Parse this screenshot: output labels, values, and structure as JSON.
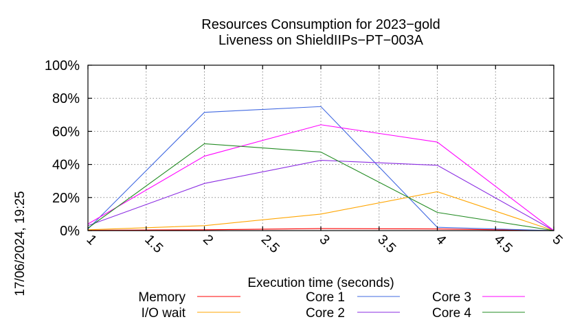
{
  "chart_data": {
    "type": "line",
    "title_lines": [
      "Resources Consumption for 2023−gold",
      "Liveness on ShieldIIPs−PT−003A"
    ],
    "xlabel": "Execution time (seconds)",
    "ylabel": "",
    "timestamp": "17/06/2024, 19:25",
    "xlim": [
      1,
      5
    ],
    "ylim": [
      0,
      100
    ],
    "x_ticks": [
      {
        "v": 1,
        "label": "1"
      },
      {
        "v": 1.5,
        "label": "1.5"
      },
      {
        "v": 2,
        "label": "2"
      },
      {
        "v": 2.5,
        "label": "2.5"
      },
      {
        "v": 3,
        "label": "3"
      },
      {
        "v": 3.5,
        "label": "3.5"
      },
      {
        "v": 4,
        "label": "4"
      },
      {
        "v": 4.5,
        "label": "4.5"
      },
      {
        "v": 5,
        "label": "5"
      }
    ],
    "y_ticks": [
      {
        "v": 0,
        "label": "0%"
      },
      {
        "v": 20,
        "label": "20%"
      },
      {
        "v": 40,
        "label": "40%"
      },
      {
        "v": 60,
        "label": "60%"
      },
      {
        "v": 80,
        "label": "80%"
      },
      {
        "v": 100,
        "label": "100%"
      }
    ],
    "grid": true,
    "legend_position": "bottom",
    "x": [
      1,
      2,
      3,
      4,
      5
    ],
    "series": [
      {
        "name": "Memory",
        "color": "#ff0000",
        "values": [
          0.2,
          0.5,
          1.2,
          1.0,
          0.0
        ]
      },
      {
        "name": "I/O wait",
        "color": "#ffa500",
        "values": [
          0.5,
          3.0,
          10.0,
          23.5,
          0.0
        ]
      },
      {
        "name": "Core 1",
        "color": "#4169e1",
        "values": [
          1.0,
          71.5,
          75.0,
          2.0,
          0.0
        ]
      },
      {
        "name": "Core 2",
        "color": "#8a2be2",
        "values": [
          3.0,
          28.5,
          42.5,
          39.5,
          0.0
        ]
      },
      {
        "name": "Core 3",
        "color": "#ff00ff",
        "values": [
          4.0,
          45.0,
          64.0,
          53.5,
          0.0
        ]
      },
      {
        "name": "Core 4",
        "color": "#228b22",
        "values": [
          1.5,
          52.5,
          47.5,
          11.0,
          0.0
        ]
      }
    ]
  }
}
